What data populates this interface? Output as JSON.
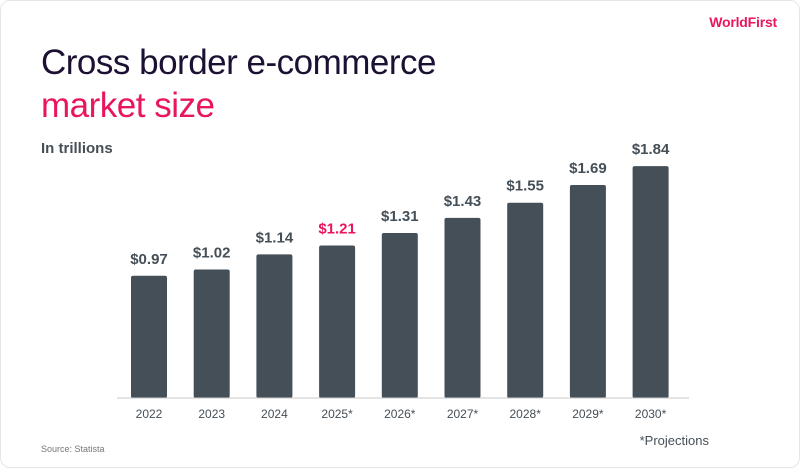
{
  "brand": {
    "name": "WorldFirst",
    "color": "#e8175d"
  },
  "header": {
    "title_line1": "Cross border e-commerce",
    "title_line2": "market size",
    "subtitle": "In trillions"
  },
  "footer": {
    "source": "Source: Statista",
    "footnote": "*Projections"
  },
  "colors": {
    "bar": "#454f57",
    "title": "#1c1033",
    "accent": "#e8175d",
    "label": "#454f57",
    "axis": "#c8c8c8",
    "muted": "#777777"
  },
  "chart_data": {
    "type": "bar",
    "title": "Cross border e-commerce market size",
    "subtitle": "In trillions",
    "categories": [
      "2022",
      "2023",
      "2024",
      "2025*",
      "2026*",
      "2027*",
      "2028*",
      "2029*",
      "2030*"
    ],
    "values": [
      0.97,
      1.02,
      1.14,
      1.21,
      1.31,
      1.43,
      1.55,
      1.69,
      1.84
    ],
    "data_labels": [
      "$0.97",
      "$1.02",
      "$1.14",
      "$1.21",
      "$1.31",
      "$1.43",
      "$1.55",
      "$1.69",
      "$1.84"
    ],
    "highlighted_label_index": 3,
    "xlabel": "",
    "ylabel": "",
    "ylim": [
      0,
      2.0
    ],
    "grid": false,
    "legend": "none"
  }
}
